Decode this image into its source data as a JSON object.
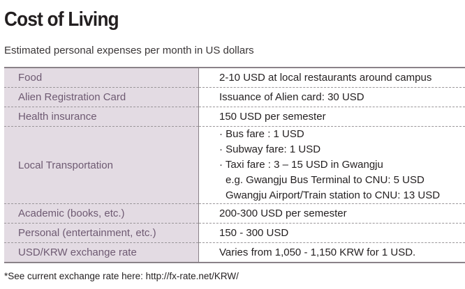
{
  "title": "Cost of Living",
  "subtitle": "Estimated personal expenses per month in US dollars",
  "rows": [
    {
      "label": "Food",
      "value": "2-10 USD at local restaurants around campus"
    },
    {
      "label": "Alien Registration Card",
      "value": "Issuance of Alien card: 30 USD"
    },
    {
      "label": "Health insurance",
      "value": "150 USD per semester"
    },
    {
      "label": "Local Transportation",
      "lines": [
        "· Bus fare : 1 USD",
        "· Subway fare: 1 USD",
        "· Taxi fare : 3 – 15 USD in Gwangju",
        "  e.g. Gwangju Bus Terminal to CNU: 5 USD",
        "  Gwangju Airport/Train station to CNU: 13 USD"
      ]
    },
    {
      "label": "Academic (books, etc.)",
      "value": "200-300 USD per semester"
    },
    {
      "label": "Personal (entertainment, etc.)",
      "value": "150 - 300 USD"
    },
    {
      "label": "USD/KRW exchange rate",
      "value": "Varies from 1,050 - 1,150 KRW for 1 USD."
    }
  ],
  "footnote": "*See current exchange rate here: http://fx-rate.net/KRW/",
  "colors": {
    "label_bg": "#e3dbe3",
    "label_text": "#6e5a72",
    "border": "#8a8288"
  }
}
